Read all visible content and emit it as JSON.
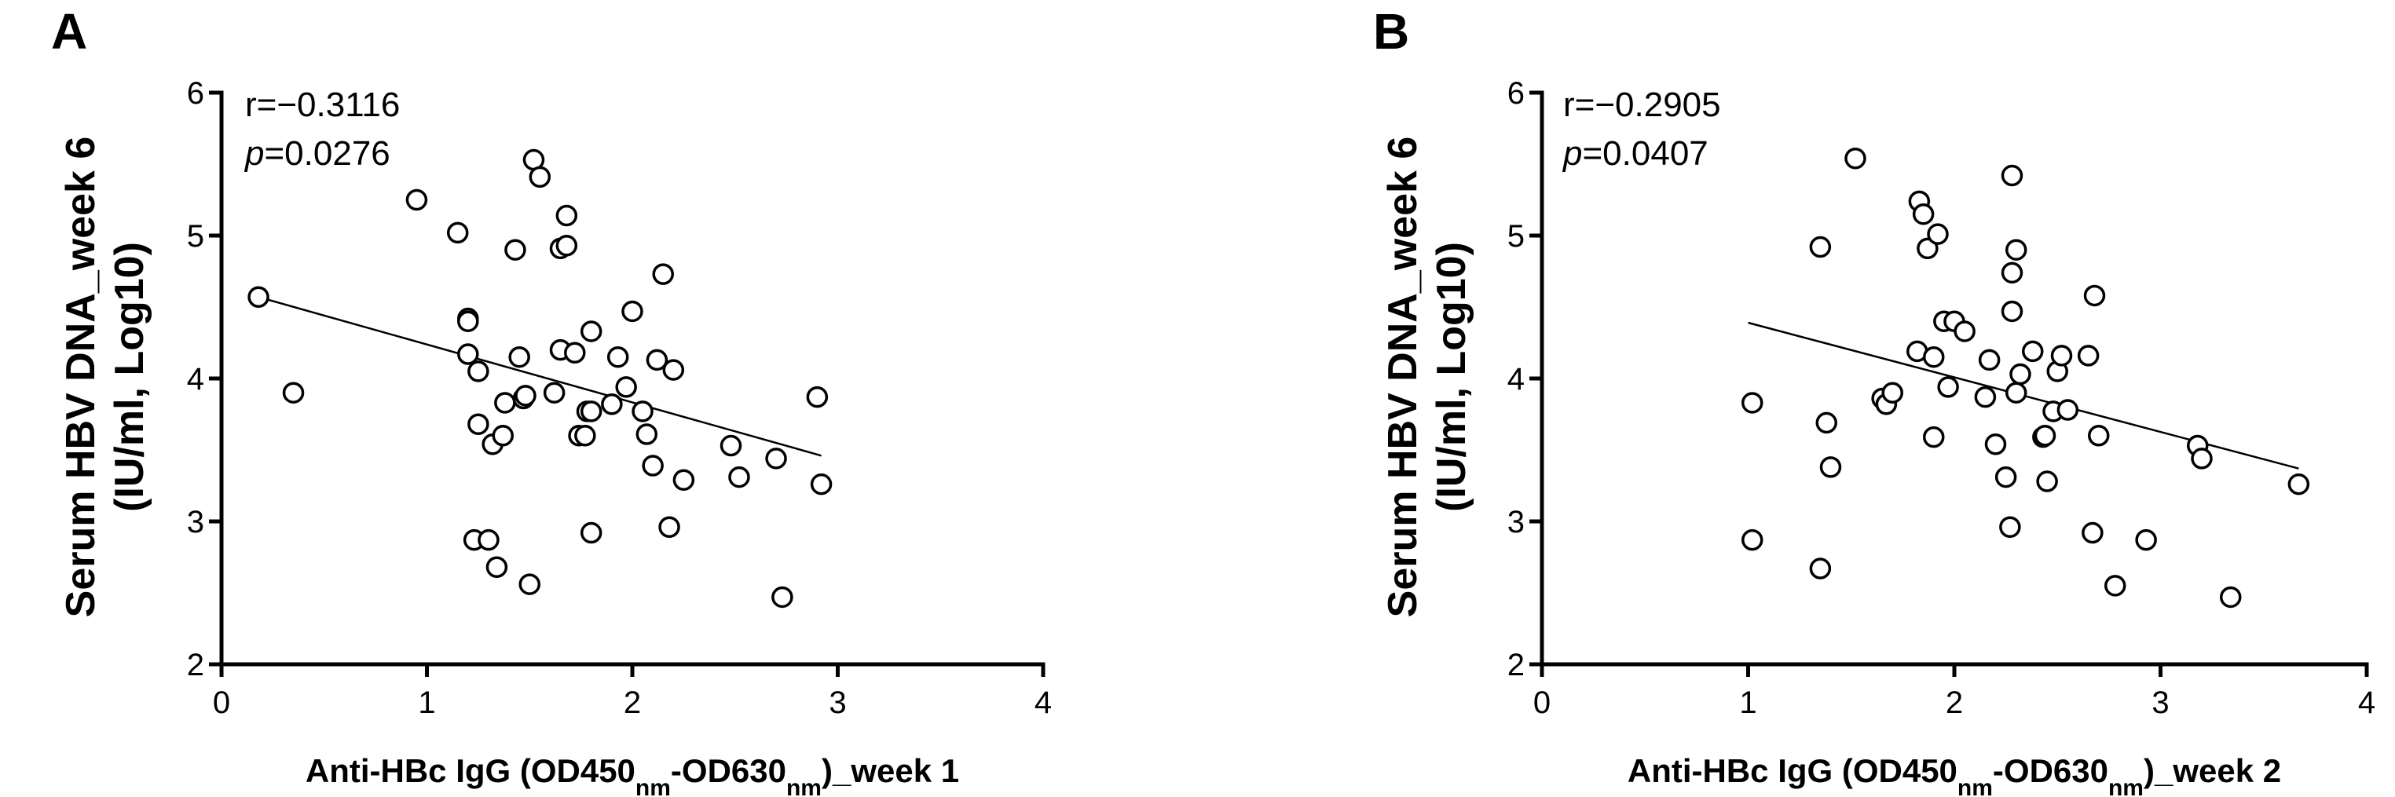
{
  "chart_data": [
    {
      "type": "scatter",
      "panel_label": "A",
      "title": "",
      "xlabel": {
        "pre": "Anti-HBc IgG (OD450",
        "sub1": "nm",
        "mid": "-OD630",
        "sub2": "nm",
        "post": ")_week 1"
      },
      "ylabel_line1": "Serum HBV DNA_week 6",
      "ylabel_line2": "(IU/ml, Log10)",
      "xlim": [
        0,
        4
      ],
      "ylim": [
        2,
        6
      ],
      "xticks": [
        "0",
        "1",
        "2",
        "3",
        "4"
      ],
      "yticks": [
        "2",
        "3",
        "4",
        "5",
        "6"
      ],
      "stat_r": "r=−0.3116",
      "stat_p_label": "p",
      "stat_p_value": "=0.0276",
      "fit_line": {
        "x": [
          0.18,
          2.92
        ],
        "y": [
          4.57,
          3.46
        ]
      },
      "points": {
        "x": [
          0.18,
          0.35,
          0.95,
          1.15,
          1.2,
          1.2,
          1.2,
          1.23,
          1.25,
          1.25,
          1.3,
          1.32,
          1.34,
          1.37,
          1.38,
          1.43,
          1.45,
          1.47,
          1.48,
          1.5,
          1.52,
          1.55,
          1.62,
          1.65,
          1.65,
          1.68,
          1.68,
          1.72,
          1.74,
          1.77,
          1.78,
          1.8,
          1.8,
          1.8,
          1.9,
          1.93,
          1.97,
          2.0,
          2.05,
          2.07,
          2.1,
          2.12,
          2.15,
          2.18,
          2.2,
          2.25,
          2.48,
          2.52,
          2.7,
          2.73,
          2.9,
          2.92
        ],
        "y": [
          4.57,
          3.9,
          5.25,
          5.02,
          4.42,
          4.4,
          4.17,
          2.87,
          4.05,
          3.68,
          2.87,
          3.54,
          2.68,
          3.6,
          3.83,
          4.9,
          4.15,
          3.86,
          3.88,
          2.56,
          5.53,
          5.41,
          3.9,
          4.91,
          4.2,
          4.93,
          5.14,
          4.18,
          3.6,
          3.6,
          3.77,
          3.77,
          4.33,
          2.92,
          3.82,
          4.15,
          3.94,
          4.47,
          3.77,
          3.61,
          3.39,
          4.13,
          4.73,
          2.96,
          4.06,
          3.29,
          3.53,
          3.31,
          3.44,
          2.47,
          3.87,
          3.26
        ]
      }
    },
    {
      "type": "scatter",
      "panel_label": "B",
      "title": "",
      "xlabel": {
        "pre": "Anti-HBc IgG (OD450",
        "sub1": "nm",
        "mid": "-OD630",
        "sub2": "nm",
        "post": ")_week 2"
      },
      "ylabel_line1": "Serum HBV DNA_week 6",
      "ylabel_line2": "(IU/ml, Log10)",
      "xlim": [
        0,
        4
      ],
      "ylim": [
        2,
        6
      ],
      "xticks": [
        "0",
        "1",
        "2",
        "3",
        "4"
      ],
      "yticks": [
        "2",
        "3",
        "4",
        "5",
        "6"
      ],
      "stat_r": "r=−0.2905",
      "stat_p_label": "p",
      "stat_p_value": "=0.0407",
      "fit_line": {
        "x": [
          1.0,
          3.67
        ],
        "y": [
          4.39,
          3.37
        ]
      },
      "points": {
        "x": [
          1.02,
          1.02,
          1.35,
          1.35,
          1.38,
          1.4,
          1.52,
          1.65,
          1.67,
          1.7,
          1.82,
          1.83,
          1.85,
          1.87,
          1.9,
          1.9,
          1.92,
          1.95,
          1.97,
          2.0,
          2.05,
          2.15,
          2.17,
          2.2,
          2.25,
          2.27,
          2.28,
          2.28,
          2.28,
          2.3,
          2.3,
          2.32,
          2.38,
          2.43,
          2.44,
          2.45,
          2.48,
          2.5,
          2.52,
          2.55,
          2.65,
          2.67,
          2.68,
          2.7,
          2.78,
          2.93,
          3.18,
          3.2,
          3.34,
          3.67
        ],
        "y": [
          3.83,
          2.87,
          4.92,
          2.67,
          3.69,
          3.38,
          5.54,
          3.86,
          3.82,
          3.9,
          4.19,
          5.24,
          5.15,
          4.91,
          3.59,
          4.15,
          5.01,
          4.4,
          3.94,
          4.4,
          4.33,
          3.87,
          4.13,
          3.54,
          3.31,
          2.96,
          4.74,
          4.47,
          5.42,
          4.9,
          3.9,
          4.03,
          4.19,
          3.59,
          3.6,
          3.28,
          3.77,
          4.05,
          4.16,
          3.78,
          4.16,
          2.92,
          4.58,
          3.6,
          2.55,
          2.87,
          3.53,
          3.44,
          2.47,
          3.26
        ]
      }
    }
  ]
}
